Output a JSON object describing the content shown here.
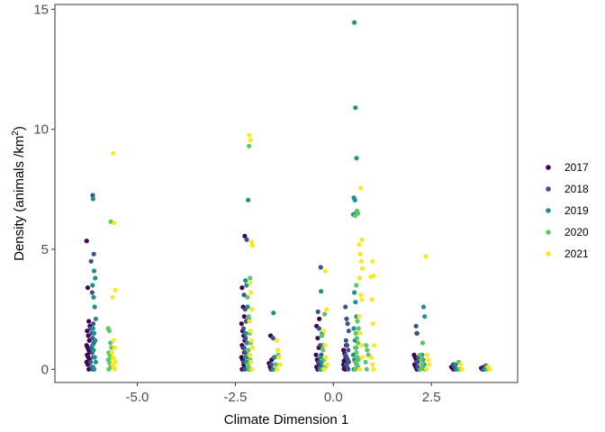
{
  "chart_data": {
    "type": "scatter",
    "title": "",
    "xlabel": "Climate Dimension 1",
    "ylabel_main": "Density (animals /km",
    "ylabel_sup": "2",
    "ylabel_end": ")",
    "xlim": [
      -7.1,
      4.7
    ],
    "ylim": [
      -0.55,
      15.2
    ],
    "x_ticks": [
      -5.0,
      -2.5,
      0.0,
      2.5
    ],
    "x_tick_labels": [
      "-5.0",
      "-2.5",
      "0.0",
      "2.5"
    ],
    "y_ticks": [
      0,
      5,
      10,
      15
    ],
    "y_tick_labels": [
      "0",
      "5",
      "10",
      "15"
    ],
    "grid": false,
    "legend_position": "right",
    "colors": {
      "2017": "#440154",
      "2018": "#3b528b",
      "2019": "#21908c",
      "2020": "#5dc863",
      "2021": "#fde725"
    },
    "series": [
      {
        "name": "2017",
        "x": [
          -6.25,
          -6.25,
          -6.25,
          -6.25,
          -6.25,
          -6.25,
          -6.25,
          -6.25,
          -6.25,
          -6.25,
          -6.25,
          -6.25,
          -6.25,
          -6.25,
          -6.25,
          -6.25,
          -6.25,
          -2.3,
          -2.3,
          -2.3,
          -2.3,
          -2.3,
          -2.3,
          -2.3,
          -2.3,
          -2.3,
          -2.3,
          -2.3,
          -2.3,
          -2.3,
          -2.3,
          -2.3,
          -2.3,
          -1.6,
          -1.6,
          -1.6,
          -1.6,
          -1.6,
          -0.4,
          -0.4,
          -0.4,
          -0.4,
          -0.4,
          -0.4,
          -0.4,
          -0.4,
          -0.4,
          -0.4,
          0.3,
          0.3,
          0.3,
          0.3,
          0.3,
          0.3,
          0.3,
          0.3,
          0.3,
          0.3,
          0.3,
          0.3,
          0.3,
          0.3,
          2.1,
          2.1,
          2.1,
          2.1,
          2.1,
          2.1,
          2.1,
          2.1,
          3.05,
          3.05,
          3.05,
          3.8,
          3.8,
          3.8
        ],
        "y": [
          5.35,
          3.4,
          2.0,
          1.8,
          1.6,
          1.4,
          1.2,
          1.0,
          0.9,
          0.8,
          0.7,
          0.6,
          0.5,
          0.4,
          0.3,
          0.2,
          0.0,
          5.55,
          3.4,
          2.6,
          2.2,
          1.9,
          1.6,
          1.4,
          1.2,
          1.0,
          0.9,
          0.7,
          0.5,
          0.4,
          0.2,
          0.1,
          0.0,
          1.4,
          0.4,
          0.25,
          0.1,
          0.0,
          2.1,
          1.8,
          1.3,
          0.9,
          0.6,
          0.4,
          0.3,
          0.2,
          0.1,
          0.0,
          1.0,
          0.8,
          0.65,
          0.5,
          0.4,
          0.35,
          0.3,
          0.25,
          0.2,
          0.15,
          0.1,
          0.05,
          0.02,
          0.0,
          1.5,
          0.6,
          0.5,
          0.4,
          0.3,
          0.2,
          0.1,
          0.0,
          0.1,
          0.05,
          0.0,
          0.1,
          0.05,
          0.0
        ]
      },
      {
        "name": "2018",
        "x": [
          -6.15,
          -6.15,
          -6.15,
          -6.15,
          -6.15,
          -6.15,
          -6.15,
          -6.15,
          -6.15,
          -6.15,
          -6.15,
          -6.15,
          -6.15,
          -6.15,
          -6.15,
          -2.25,
          -2.25,
          -2.25,
          -2.25,
          -2.25,
          -2.25,
          -2.25,
          -2.25,
          -2.25,
          -2.25,
          -2.25,
          -2.25,
          -2.25,
          -1.55,
          -1.55,
          -1.55,
          -1.55,
          -0.35,
          -0.35,
          -0.35,
          -0.35,
          -0.35,
          -0.35,
          -0.35,
          -0.35,
          0.35,
          0.35,
          0.35,
          0.35,
          0.35,
          0.35,
          0.35,
          0.35,
          0.35,
          0.35,
          0.35,
          0.35,
          0.35,
          0.35,
          2.15,
          2.15,
          2.15,
          2.15,
          2.15,
          2.15,
          2.15,
          3.1,
          3.1,
          3.1,
          3.85,
          3.85
        ],
        "y": [
          7.25,
          4.8,
          4.5,
          3.2,
          1.9,
          1.7,
          1.5,
          1.3,
          1.1,
          0.9,
          0.7,
          0.5,
          0.3,
          0.1,
          0.0,
          5.4,
          3.1,
          2.5,
          2.0,
          1.7,
          1.5,
          1.3,
          1.1,
          0.9,
          0.7,
          0.5,
          0.3,
          0.0,
          1.3,
          0.5,
          0.2,
          0.0,
          4.25,
          2.4,
          1.7,
          1.0,
          0.6,
          0.3,
          0.1,
          0.0,
          2.6,
          2.1,
          1.9,
          1.6,
          1.2,
          1.0,
          0.8,
          0.6,
          0.5,
          0.4,
          0.3,
          0.2,
          0.1,
          0.0,
          1.8,
          1.5,
          0.5,
          0.4,
          0.3,
          0.1,
          0.0,
          0.2,
          0.1,
          0.0,
          0.15,
          0.0
        ]
      },
      {
        "name": "2019",
        "x": [
          -6.1,
          -6.1,
          -6.1,
          -6.1,
          -6.1,
          -6.1,
          -6.1,
          -6.1,
          -6.1,
          -6.1,
          -6.1,
          -6.1,
          -6.1,
          -6.1,
          -6.1,
          -6.1,
          -2.2,
          -2.2,
          -2.2,
          -2.2,
          -2.2,
          -2.2,
          -2.2,
          -2.2,
          -2.2,
          -2.2,
          -2.2,
          -2.2,
          -1.5,
          -1.5,
          -1.5,
          -1.5,
          -0.3,
          -0.3,
          -0.3,
          -0.3,
          -0.3,
          -0.3,
          -0.3,
          0.55,
          0.55,
          0.55,
          0.55,
          0.55,
          0.55,
          0.55,
          0.55,
          0.55,
          0.55,
          0.55,
          0.55,
          0.55,
          0.55,
          0.55,
          0.55,
          0.55,
          0.55,
          2.3,
          2.3,
          2.3,
          2.3,
          2.3,
          2.3,
          3.15,
          3.15,
          3.9,
          3.9
        ],
        "y": [
          7.1,
          4.1,
          3.8,
          3.5,
          3.0,
          2.6,
          2.1,
          1.7,
          1.5,
          1.2,
          1.0,
          0.8,
          0.5,
          0.3,
          0.1,
          0.0,
          7.05,
          3.7,
          3.5,
          2.6,
          2.1,
          1.5,
          1.1,
          0.8,
          0.5,
          0.3,
          0.1,
          0.0,
          2.35,
          0.5,
          0.2,
          0.0,
          3.25,
          1.5,
          1.0,
          0.5,
          0.3,
          0.1,
          0.0,
          14.45,
          10.9,
          8.8,
          7.15,
          7.05,
          6.5,
          6.45,
          3.2,
          2.8,
          2.2,
          1.7,
          1.2,
          0.9,
          0.6,
          0.4,
          0.3,
          0.2,
          0.0,
          2.6,
          2.2,
          0.6,
          0.4,
          0.2,
          0.0,
          0.2,
          0.0,
          0.1,
          0.0
        ]
      },
      {
        "name": "2020",
        "x": [
          -5.7,
          -5.7,
          -5.7,
          -5.7,
          -5.7,
          -5.7,
          -5.7,
          -5.7,
          -5.7,
          -5.7,
          -5.7,
          -5.7,
          -5.7,
          -2.15,
          -2.15,
          -2.15,
          -2.15,
          -2.15,
          -2.15,
          -2.15,
          -2.15,
          -2.15,
          -2.15,
          -2.15,
          -2.15,
          -1.45,
          -1.45,
          -1.45,
          -0.25,
          -0.25,
          -0.25,
          -0.25,
          -0.25,
          -0.25,
          0.6,
          0.6,
          0.6,
          0.6,
          0.6,
          0.6,
          0.6,
          0.6,
          0.6,
          0.6,
          0.6,
          0.6,
          0.6,
          0.6,
          0.6,
          0.6,
          0.6,
          0.85,
          0.85,
          0.85,
          0.85,
          0.85,
          2.25,
          2.25,
          2.25,
          2.25,
          2.25,
          2.25,
          3.2,
          3.2,
          3.95,
          3.95
        ],
        "y": [
          6.15,
          1.7,
          1.6,
          1.1,
          0.9,
          0.7,
          0.6,
          0.5,
          0.4,
          0.3,
          0.2,
          0.1,
          0.0,
          9.3,
          3.8,
          3.0,
          2.2,
          1.5,
          1.1,
          0.8,
          0.6,
          0.4,
          0.2,
          0.1,
          0.0,
          0.6,
          0.2,
          0.0,
          2.3,
          1.4,
          0.8,
          0.4,
          0.1,
          0.0,
          6.6,
          6.5,
          6.4,
          3.5,
          2.0,
          1.7,
          1.5,
          1.3,
          1.1,
          0.9,
          0.7,
          0.5,
          0.4,
          0.3,
          0.2,
          0.1,
          0.0,
          1.0,
          0.8,
          0.6,
          0.3,
          0.0,
          1.1,
          0.6,
          0.4,
          0.2,
          0.1,
          0.0,
          0.3,
          0.0,
          0.1,
          0.0
        ]
      },
      {
        "name": "2021",
        "x": [
          -5.6,
          -5.6,
          -5.6,
          -5.6,
          -5.6,
          -5.6,
          -5.6,
          -5.6,
          -5.6,
          -5.6,
          -5.6,
          -5.6,
          -5.6,
          -2.1,
          -2.1,
          -2.1,
          -2.1,
          -2.1,
          -2.1,
          -2.1,
          -2.1,
          -2.1,
          -2.1,
          -2.1,
          -2.1,
          -2.1,
          -2.1,
          -1.4,
          -1.4,
          -1.4,
          -1.4,
          -1.4,
          -0.2,
          -0.2,
          -0.2,
          -0.2,
          -0.2,
          -0.2,
          -0.2,
          0.7,
          0.7,
          0.7,
          0.7,
          0.7,
          0.7,
          0.7,
          0.7,
          0.7,
          0.7,
          0.7,
          0.7,
          0.7,
          0.7,
          1.0,
          1.0,
          1.0,
          1.0,
          1.0,
          1.0,
          1.0,
          1.0,
          1.0,
          2.4,
          2.4,
          2.4,
          2.4,
          2.4,
          3.25,
          3.25,
          4.0,
          4.0
        ],
        "y": [
          9.0,
          6.1,
          3.3,
          3.0,
          1.2,
          0.9,
          0.7,
          0.5,
          0.4,
          0.3,
          0.2,
          0.1,
          0.0,
          9.75,
          9.55,
          5.3,
          5.15,
          3.6,
          3.2,
          2.5,
          2.0,
          1.6,
          1.2,
          0.9,
          0.6,
          0.3,
          0.0,
          1.2,
          0.8,
          0.5,
          0.2,
          0.0,
          4.1,
          2.5,
          1.6,
          1.0,
          0.5,
          0.2,
          0.0,
          7.55,
          5.4,
          5.2,
          4.8,
          4.5,
          4.2,
          3.8,
          3.1,
          2.9,
          2.2,
          1.5,
          1.0,
          0.5,
          0.0,
          4.5,
          3.9,
          3.85,
          2.9,
          1.9,
          1.0,
          0.5,
          0.2,
          0.0,
          4.7,
          0.6,
          0.4,
          0.2,
          0.0,
          0.2,
          0.0,
          0.1,
          0.0
        ]
      }
    ]
  }
}
